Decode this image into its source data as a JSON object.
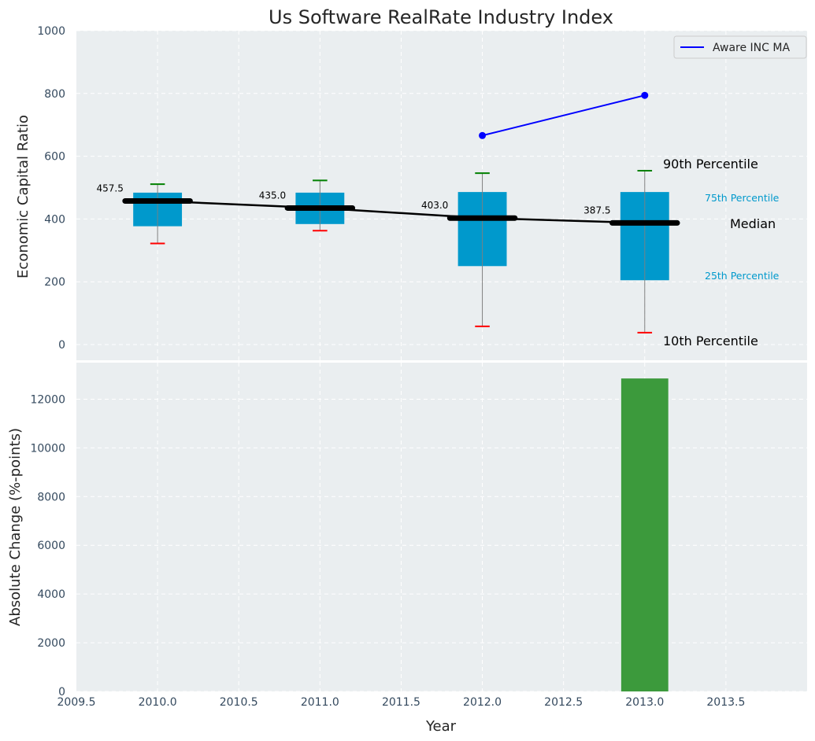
{
  "chart_data": [
    {
      "type": "box",
      "title": "Us Software RealRate Industry Index",
      "ylabel": "Economic Capital Ratio",
      "ylim": [
        -50,
        1000
      ],
      "xlim": [
        2009.5,
        2014.0
      ],
      "grid": true,
      "yticks": [
        0,
        200,
        400,
        600,
        800,
        1000
      ],
      "boxes": [
        {
          "x": 2010,
          "p10": 322,
          "p25": 377,
          "median": 457.5,
          "p75": 484,
          "p90": 511,
          "median_label": "457.5"
        },
        {
          "x": 2011,
          "p10": 363,
          "p25": 384,
          "median": 435.0,
          "p75": 484,
          "p90": 523,
          "median_label": "435.0"
        },
        {
          "x": 2012,
          "p10": 58,
          "p25": 250,
          "median": 403.0,
          "p75": 486,
          "p90": 546,
          "median_label": "403.0"
        },
        {
          "x": 2013,
          "p10": 38,
          "p25": 205,
          "median": 387.5,
          "p75": 486,
          "p90": 554,
          "median_label": "387.5"
        }
      ],
      "series": [
        {
          "name": "Aware INC MA",
          "color": "#0000ff",
          "x": [
            2012,
            2013
          ],
          "values": [
            666,
            794
          ]
        }
      ],
      "legend": {
        "placement": "top-right",
        "entries": [
          "Aware INC MA"
        ]
      },
      "annotations": {
        "p90": "90th Percentile",
        "p75": "75th Percentile",
        "median": "Median",
        "p25": "25th Percentile",
        "p10": "10th Percentile"
      },
      "colors": {
        "box": "#0099cc",
        "median_line": "#000000",
        "p90_cap": "#008000",
        "p10_cap": "#ff0000",
        "whisker": "#808080",
        "ma_line": "#0000ff",
        "panel_bg": "#eaeef0"
      }
    },
    {
      "type": "bar",
      "ylabel": "Absolute Change (%-points)",
      "xlabel": "Year",
      "ylim": [
        0,
        13500
      ],
      "xlim": [
        2009.5,
        2014.0
      ],
      "grid": true,
      "yticks": [
        0,
        2000,
        4000,
        6000,
        8000,
        10000,
        12000
      ],
      "xticks": [
        "2009.5",
        "2010.0",
        "2010.5",
        "2011.0",
        "2011.5",
        "2012.0",
        "2012.5",
        "2013.0",
        "2013.5"
      ],
      "x": [
        2013
      ],
      "values": [
        12850
      ],
      "colors": {
        "bar": "#3c9a3c"
      }
    }
  ]
}
